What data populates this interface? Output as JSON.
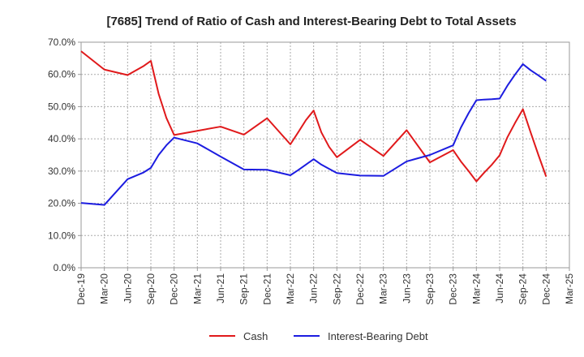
{
  "chart_data": {
    "type": "line",
    "title": "[7685]  Trend of Ratio of Cash and Interest-Bearing Debt to Total Assets",
    "xlabel": "",
    "ylabel": "",
    "ylim": [
      0,
      70
    ],
    "y_ticks": [
      "0.0%",
      "10.0%",
      "20.0%",
      "30.0%",
      "40.0%",
      "50.0%",
      "60.0%",
      "70.0%"
    ],
    "x_ticks": [
      "Dec-19",
      "Mar-20",
      "Jun-20",
      "Sep-20",
      "Dec-20",
      "Mar-21",
      "Jun-21",
      "Sep-21",
      "Dec-21",
      "Mar-22",
      "Jun-22",
      "Sep-22",
      "Dec-22",
      "Mar-23",
      "Jun-23",
      "Sep-23",
      "Dec-23",
      "Mar-24",
      "Jun-24",
      "Sep-24",
      "Dec-24",
      "Mar-25"
    ],
    "grid": true,
    "legend_position": "bottom",
    "x": [
      "Dec-19",
      "Mar-20",
      "Jun-20",
      "Aug-20",
      "Sep-20",
      "Oct-20",
      "Nov-20",
      "Dec-20",
      "Mar-21",
      "Jun-21",
      "Sep-21",
      "Dec-21",
      "Mar-22",
      "Apr-22",
      "May-22",
      "Jun-22",
      "Jul-22",
      "Aug-22",
      "Sep-22",
      "Dec-22",
      "Mar-23",
      "Jun-23",
      "Sep-23",
      "Dec-23",
      "Jan-24",
      "Feb-24",
      "Mar-24",
      "Apr-24",
      "May-24",
      "Jun-24",
      "Jul-24",
      "Aug-24",
      "Sep-24",
      "Oct-24",
      "Nov-24",
      "Dec-24"
    ],
    "series": [
      {
        "name": "Cash",
        "color": "#e0191b",
        "points": [
          [
            "Dec-19",
            67.2
          ],
          [
            "Mar-20",
            61.5
          ],
          [
            "Jun-20",
            59.8
          ],
          [
            "Aug-20",
            62.5
          ],
          [
            "Sep-20",
            64.2
          ],
          [
            "Oct-20",
            54.0
          ],
          [
            "Nov-20",
            46.5
          ],
          [
            "Dec-20",
            41.2
          ],
          [
            "Mar-21",
            42.5
          ],
          [
            "Jun-21",
            43.8
          ],
          [
            "Sep-21",
            41.3
          ],
          [
            "Dec-21",
            46.4
          ],
          [
            "Mar-22",
            38.3
          ],
          [
            "Apr-22",
            42.0
          ],
          [
            "May-22",
            45.8
          ],
          [
            "Jun-22",
            48.8
          ],
          [
            "Jul-22",
            42.0
          ],
          [
            "Aug-22",
            37.5
          ],
          [
            "Sep-22",
            34.3
          ],
          [
            "Dec-22",
            39.7
          ],
          [
            "Mar-23",
            34.7
          ],
          [
            "Jun-23",
            42.7
          ],
          [
            "Sep-23",
            32.7
          ],
          [
            "Dec-23",
            36.5
          ],
          [
            "Jan-24",
            33.0
          ],
          [
            "Feb-24",
            30.0
          ],
          [
            "Mar-24",
            26.8
          ],
          [
            "Apr-24",
            29.5
          ],
          [
            "May-24",
            32.0
          ],
          [
            "Jun-24",
            34.9
          ],
          [
            "Jul-24",
            40.5
          ],
          [
            "Aug-24",
            45.0
          ],
          [
            "Sep-24",
            49.2
          ],
          [
            "Oct-24",
            42.0
          ],
          [
            "Nov-24",
            35.0
          ],
          [
            "Dec-24",
            28.3
          ]
        ]
      },
      {
        "name": "Interest-Bearing Debt",
        "color": "#1c1ce0",
        "points": [
          [
            "Dec-19",
            20.1
          ],
          [
            "Mar-20",
            19.5
          ],
          [
            "Jun-20",
            27.5
          ],
          [
            "Aug-20",
            29.5
          ],
          [
            "Sep-20",
            31.0
          ],
          [
            "Oct-20",
            35.0
          ],
          [
            "Nov-20",
            38.0
          ],
          [
            "Dec-20",
            40.4
          ],
          [
            "Mar-21",
            38.6
          ],
          [
            "Jun-21",
            34.5
          ],
          [
            "Sep-21",
            30.5
          ],
          [
            "Dec-21",
            30.4
          ],
          [
            "Mar-22",
            28.7
          ],
          [
            "Apr-22",
            30.3
          ],
          [
            "May-22",
            32.0
          ],
          [
            "Jun-22",
            33.7
          ],
          [
            "Jul-22",
            32.0
          ],
          [
            "Aug-22",
            30.7
          ],
          [
            "Sep-22",
            29.4
          ],
          [
            "Dec-22",
            28.6
          ],
          [
            "Mar-23",
            28.5
          ],
          [
            "Jun-23",
            33.0
          ],
          [
            "Sep-23",
            35.0
          ],
          [
            "Dec-23",
            38.0
          ],
          [
            "Jan-24",
            43.5
          ],
          [
            "Feb-24",
            48.0
          ],
          [
            "Mar-24",
            52.0
          ],
          [
            "Apr-24",
            52.2
          ],
          [
            "May-24",
            52.3
          ],
          [
            "Jun-24",
            52.5
          ],
          [
            "Jul-24",
            56.5
          ],
          [
            "Aug-24",
            60.0
          ],
          [
            "Sep-24",
            63.2
          ],
          [
            "Oct-24",
            61.3
          ],
          [
            "Nov-24",
            59.7
          ],
          [
            "Dec-24",
            58.0
          ]
        ]
      }
    ]
  }
}
